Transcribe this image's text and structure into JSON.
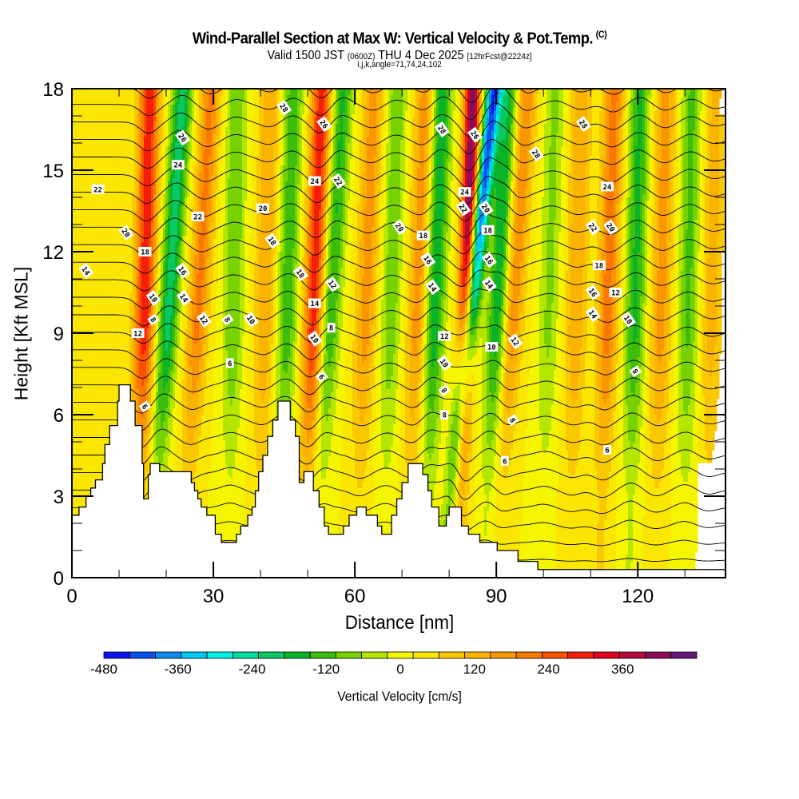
{
  "header": {
    "title": "Wind-Parallel Section at Max W: Vertical Velocity & Pot.Temp.",
    "copyright": "(C)",
    "valid_prefix": "Valid 1500 JST",
    "valid_utc": "(0600Z)",
    "valid_suffix": "THU 4 Dec 2025",
    "forecast": "[12hrFcst@2224z]",
    "grid_info": "i,j,k,angle=71,74,24,102"
  },
  "chart_data": {
    "type": "heatmap",
    "title": "Wind-Parallel Section at Max W: Vertical Velocity & Pot.Temp.",
    "xlabel": "Distance [nm]",
    "ylabel": "Height [Kft MSL]",
    "xlim": [
      0,
      138.6
    ],
    "ylim": [
      0,
      18
    ],
    "x_ticks": [
      0,
      30,
      60,
      90,
      120
    ],
    "x_tick_labels": [
      "0",
      "30",
      "60",
      "90",
      "120"
    ],
    "x_minor_step": 10,
    "y_ticks": [
      0,
      3,
      6,
      9,
      12,
      15,
      18
    ],
    "y_tick_labels": [
      "0",
      "3",
      "6",
      "9",
      "12",
      "15",
      "18"
    ],
    "y_minor_step": 1,
    "colorbar": {
      "label": "Vertical Velocity [cm/s]",
      "min": -480,
      "max": 440,
      "step": 40,
      "tick_values": [
        -480,
        -360,
        -240,
        -120,
        0,
        120,
        240,
        360
      ],
      "tick_labels": [
        "-480",
        "-360",
        "-240",
        "-120",
        "0",
        "120",
        "240",
        "360"
      ],
      "colors": [
        "#0a14f0",
        "#0a50f0",
        "#0a8cf0",
        "#00c8f5",
        "#00f0e6",
        "#00dca0",
        "#0ac864",
        "#0ab428",
        "#3cbe0a",
        "#78d200",
        "#b4e600",
        "#f5f500",
        "#fae600",
        "#fac800",
        "#fab400",
        "#fa9600",
        "#fa7800",
        "#fa5000",
        "#f51e0a",
        "#e1001e",
        "#b40a3c",
        "#8c0a5a",
        "#641478"
      ]
    },
    "w_bands": [
      {
        "center_nm_at_18kft": 16.5,
        "center_nm_at_3kft": 14.5,
        "peak_cms": 270
      },
      {
        "center_nm_at_18kft": 23.5,
        "center_nm_at_3kft": 18.0,
        "peak_cms": -220
      },
      {
        "center_nm_at_18kft": 29.5,
        "center_nm_at_3kft": 24.5,
        "peak_cms": 170
      },
      {
        "center_nm_at_18kft": 35.0,
        "center_nm_at_3kft": 33.5,
        "peak_cms": -120
      },
      {
        "center_nm_at_18kft": 42.0,
        "center_nm_at_3kft": 40.0,
        "peak_cms": 120
      },
      {
        "center_nm_at_18kft": 47.0,
        "center_nm_at_3kft": 44.5,
        "peak_cms": -150
      },
      {
        "center_nm_at_18kft": 53.0,
        "center_nm_at_3kft": 50.0,
        "peak_cms": 270
      },
      {
        "center_nm_at_18kft": 57.5,
        "center_nm_at_3kft": 52.5,
        "peak_cms": -170
      },
      {
        "center_nm_at_18kft": 64.0,
        "center_nm_at_3kft": 61.0,
        "peak_cms": 140
      },
      {
        "center_nm_at_18kft": 69.0,
        "center_nm_at_3kft": 66.5,
        "peak_cms": -110
      },
      {
        "center_nm_at_18kft": 75.0,
        "center_nm_at_3kft": 72.0,
        "peak_cms": 150
      },
      {
        "center_nm_at_18kft": 78.5,
        "center_nm_at_3kft": 75.5,
        "peak_cms": -200
      },
      {
        "center_nm_at_18kft": 85.0,
        "center_nm_at_3kft": 82.5,
        "peak_cms": 400
      },
      {
        "center_nm_at_18kft": 89.5,
        "center_nm_at_3kft": 80.5,
        "peak_cms": -420
      },
      {
        "center_nm_at_18kft": 92.5,
        "center_nm_at_3kft": 88.5,
        "peak_cms": -200
      },
      {
        "center_nm_at_18kft": 96.5,
        "center_nm_at_3kft": 91.0,
        "peak_cms": 160
      },
      {
        "center_nm_at_18kft": 102.5,
        "center_nm_at_3kft": 100.0,
        "peak_cms": -90
      },
      {
        "center_nm_at_18kft": 108.0,
        "center_nm_at_3kft": 106.0,
        "peak_cms": 120
      },
      {
        "center_nm_at_18kft": 115.0,
        "center_nm_at_3kft": 112.5,
        "peak_cms": 180
      },
      {
        "center_nm_at_18kft": 120.5,
        "center_nm_at_3kft": 118.5,
        "peak_cms": -170
      },
      {
        "center_nm_at_18kft": 126.0,
        "center_nm_at_3kft": 124.0,
        "peak_cms": 140
      },
      {
        "center_nm_at_18kft": 131.5,
        "center_nm_at_3kft": 130.0,
        "peak_cms": -130
      },
      {
        "center_nm_at_18kft": 136.5,
        "center_nm_at_3kft": 135.0,
        "peak_cms": 100
      }
    ],
    "theta_contours": {
      "levels_c": [
        4,
        6,
        8,
        10,
        12,
        14,
        16,
        18,
        20,
        22,
        24,
        26,
        28,
        30
      ],
      "interval_c": 2,
      "labels": [
        {
          "text": "22",
          "x_nm": 5.5,
          "y_kft": 14.3
        },
        {
          "text": "14",
          "x_nm": 3.0,
          "y_kft": 11.3
        },
        {
          "text": "20",
          "x_nm": 11.5,
          "y_kft": 12.7
        },
        {
          "text": "18",
          "x_nm": 15.5,
          "y_kft": 12.0
        },
        {
          "text": "10",
          "x_nm": 17.3,
          "y_kft": 10.3
        },
        {
          "text": "8",
          "x_nm": 17.3,
          "y_kft": 9.5
        },
        {
          "text": "12",
          "x_nm": 14.0,
          "y_kft": 9.0
        },
        {
          "text": "6",
          "x_nm": 15.5,
          "y_kft": 6.3
        },
        {
          "text": "26",
          "x_nm": 23.5,
          "y_kft": 16.2
        },
        {
          "text": "24",
          "x_nm": 22.5,
          "y_kft": 15.2
        },
        {
          "text": "16",
          "x_nm": 23.5,
          "y_kft": 11.3
        },
        {
          "text": "14",
          "x_nm": 23.8,
          "y_kft": 10.3
        },
        {
          "text": "22",
          "x_nm": 26.7,
          "y_kft": 13.3
        },
        {
          "text": "12",
          "x_nm": 28.0,
          "y_kft": 9.5
        },
        {
          "text": "8",
          "x_nm": 33.0,
          "y_kft": 9.5
        },
        {
          "text": "6",
          "x_nm": 33.5,
          "y_kft": 7.9
        },
        {
          "text": "10",
          "x_nm": 38.0,
          "y_kft": 9.5
        },
        {
          "text": "28",
          "x_nm": 45.0,
          "y_kft": 17.3
        },
        {
          "text": "20",
          "x_nm": 40.5,
          "y_kft": 13.6
        },
        {
          "text": "18",
          "x_nm": 42.5,
          "y_kft": 12.4
        },
        {
          "text": "26",
          "x_nm": 53.5,
          "y_kft": 16.7
        },
        {
          "text": "24",
          "x_nm": 51.5,
          "y_kft": 14.6
        },
        {
          "text": "22",
          "x_nm": 56.5,
          "y_kft": 14.6
        },
        {
          "text": "18",
          "x_nm": 48.5,
          "y_kft": 11.2
        },
        {
          "text": "14",
          "x_nm": 51.5,
          "y_kft": 10.1
        },
        {
          "text": "12",
          "x_nm": 55.3,
          "y_kft": 10.8
        },
        {
          "text": "10",
          "x_nm": 51.5,
          "y_kft": 8.8
        },
        {
          "text": "8",
          "x_nm": 55.0,
          "y_kft": 9.2
        },
        {
          "text": "6",
          "x_nm": 53.0,
          "y_kft": 7.4
        },
        {
          "text": "20",
          "x_nm": 69.5,
          "y_kft": 12.9
        },
        {
          "text": "18",
          "x_nm": 74.5,
          "y_kft": 12.6
        },
        {
          "text": "16",
          "x_nm": 75.5,
          "y_kft": 11.7
        },
        {
          "text": "14",
          "x_nm": 76.5,
          "y_kft": 10.7
        },
        {
          "text": "12",
          "x_nm": 79.0,
          "y_kft": 8.9
        },
        {
          "text": "10",
          "x_nm": 79.0,
          "y_kft": 7.9
        },
        {
          "text": "8",
          "x_nm": 79.0,
          "y_kft": 6.9
        },
        {
          "text": "8",
          "x_nm": 79.0,
          "y_kft": 6.0
        },
        {
          "text": "28",
          "x_nm": 78.5,
          "y_kft": 16.5
        },
        {
          "text": "26",
          "x_nm": 85.5,
          "y_kft": 16.3
        },
        {
          "text": "24",
          "x_nm": 83.3,
          "y_kft": 14.2
        },
        {
          "text": "22",
          "x_nm": 83.0,
          "y_kft": 13.6
        },
        {
          "text": "20",
          "x_nm": 87.8,
          "y_kft": 13.6
        },
        {
          "text": "18",
          "x_nm": 88.2,
          "y_kft": 12.8
        },
        {
          "text": "16",
          "x_nm": 88.5,
          "y_kft": 11.7
        },
        {
          "text": "14",
          "x_nm": 88.5,
          "y_kft": 10.8
        },
        {
          "text": "10",
          "x_nm": 89.0,
          "y_kft": 8.5
        },
        {
          "text": "12",
          "x_nm": 94.0,
          "y_kft": 8.7
        },
        {
          "text": "8",
          "x_nm": 93.5,
          "y_kft": 5.8
        },
        {
          "text": "6",
          "x_nm": 91.8,
          "y_kft": 4.3
        },
        {
          "text": "28",
          "x_nm": 98.5,
          "y_kft": 15.6
        },
        {
          "text": "28",
          "x_nm": 108.5,
          "y_kft": 16.7
        },
        {
          "text": "24",
          "x_nm": 113.5,
          "y_kft": 14.4
        },
        {
          "text": "22",
          "x_nm": 110.5,
          "y_kft": 12.9
        },
        {
          "text": "20",
          "x_nm": 114.3,
          "y_kft": 12.9
        },
        {
          "text": "18",
          "x_nm": 111.8,
          "y_kft": 11.5
        },
        {
          "text": "16",
          "x_nm": 110.5,
          "y_kft": 10.5
        },
        {
          "text": "14",
          "x_nm": 110.5,
          "y_kft": 9.7
        },
        {
          "text": "12",
          "x_nm": 115.3,
          "y_kft": 10.5
        },
        {
          "text": "10",
          "x_nm": 118.0,
          "y_kft": 9.5
        },
        {
          "text": "8",
          "x_nm": 119.5,
          "y_kft": 7.6
        },
        {
          "text": "6",
          "x_nm": 113.5,
          "y_kft": 4.7
        }
      ]
    },
    "terrain_profile": [
      [
        0,
        2.3
      ],
      [
        1.5,
        2.3
      ],
      [
        1.5,
        2.6
      ],
      [
        3,
        2.6
      ],
      [
        3,
        3.0
      ],
      [
        4,
        3.0
      ],
      [
        4,
        3.3
      ],
      [
        5,
        3.3
      ],
      [
        5,
        3.6
      ],
      [
        6.5,
        3.6
      ],
      [
        6.5,
        4.2
      ],
      [
        7,
        4.2
      ],
      [
        7,
        4.9
      ],
      [
        8,
        4.9
      ],
      [
        8,
        5.6
      ],
      [
        9.7,
        5.6
      ],
      [
        9.7,
        6.5
      ],
      [
        10,
        6.5
      ],
      [
        10,
        7.1
      ],
      [
        12.4,
        7.1
      ],
      [
        12.4,
        6.5
      ],
      [
        13.4,
        6.5
      ],
      [
        13.4,
        5.6
      ],
      [
        14.9,
        5.6
      ],
      [
        14.9,
        4.2
      ],
      [
        15.2,
        4.2
      ],
      [
        15.2,
        2.9
      ],
      [
        16.2,
        2.9
      ],
      [
        16.2,
        3.8
      ],
      [
        16.6,
        3.8
      ],
      [
        16.6,
        4.2
      ],
      [
        18.6,
        4.2
      ],
      [
        18.6,
        3.9
      ],
      [
        25.3,
        3.9
      ],
      [
        25.3,
        3.5
      ],
      [
        26.0,
        3.5
      ],
      [
        26.0,
        3.2
      ],
      [
        26.7,
        3.2
      ],
      [
        26.7,
        2.9
      ],
      [
        27.4,
        2.9
      ],
      [
        27.4,
        2.6
      ],
      [
        28.6,
        2.6
      ],
      [
        28.6,
        2.3
      ],
      [
        30.4,
        2.3
      ],
      [
        30.4,
        1.6
      ],
      [
        31.7,
        1.6
      ],
      [
        31.7,
        1.3
      ],
      [
        34.9,
        1.3
      ],
      [
        34.9,
        1.6
      ],
      [
        35.8,
        1.6
      ],
      [
        35.8,
        1.9
      ],
      [
        37.3,
        1.9
      ],
      [
        37.3,
        2.3
      ],
      [
        38.2,
        2.3
      ],
      [
        38.2,
        2.6
      ],
      [
        38.9,
        2.6
      ],
      [
        38.9,
        3.2
      ],
      [
        39.6,
        3.2
      ],
      [
        39.6,
        3.9
      ],
      [
        40.5,
        3.9
      ],
      [
        40.5,
        4.5
      ],
      [
        41.5,
        4.5
      ],
      [
        41.5,
        5.2
      ],
      [
        42.6,
        5.2
      ],
      [
        42.6,
        5.8
      ],
      [
        43.7,
        5.8
      ],
      [
        43.7,
        6.5
      ],
      [
        46.3,
        6.5
      ],
      [
        46.3,
        5.8
      ],
      [
        47.4,
        5.8
      ],
      [
        47.4,
        5.2
      ],
      [
        48.2,
        5.2
      ],
      [
        48.2,
        3.5
      ],
      [
        49.2,
        3.5
      ],
      [
        49.2,
        3.9
      ],
      [
        51.2,
        3.9
      ],
      [
        51.2,
        3.2
      ],
      [
        52.4,
        3.2
      ],
      [
        52.4,
        2.6
      ],
      [
        53.5,
        2.6
      ],
      [
        53.5,
        1.9
      ],
      [
        54.4,
        1.9
      ],
      [
        54.4,
        1.6
      ],
      [
        57.6,
        1.6
      ],
      [
        57.6,
        1.9
      ],
      [
        58.8,
        1.9
      ],
      [
        58.8,
        2.3
      ],
      [
        60.4,
        2.3
      ],
      [
        60.4,
        2.6
      ],
      [
        62.4,
        2.6
      ],
      [
        62.4,
        2.3
      ],
      [
        64.8,
        2.3
      ],
      [
        64.8,
        1.9
      ],
      [
        65.7,
        1.9
      ],
      [
        65.7,
        1.6
      ],
      [
        67.8,
        1.6
      ],
      [
        67.8,
        2.3
      ],
      [
        68.9,
        2.3
      ],
      [
        68.9,
        2.9
      ],
      [
        70.0,
        2.9
      ],
      [
        70.0,
        3.5
      ],
      [
        71.3,
        3.5
      ],
      [
        71.3,
        4.2
      ],
      [
        74.4,
        4.2
      ],
      [
        74.4,
        3.8
      ],
      [
        75.5,
        3.8
      ],
      [
        75.5,
        3.2
      ],
      [
        76.3,
        3.2
      ],
      [
        76.3,
        2.6
      ],
      [
        77.8,
        2.6
      ],
      [
        77.8,
        1.9
      ],
      [
        79.4,
        1.9
      ],
      [
        79.4,
        2.3
      ],
      [
        80.0,
        2.3
      ],
      [
        80.0,
        2.6
      ],
      [
        82.6,
        2.6
      ],
      [
        82.6,
        1.9
      ],
      [
        84.1,
        1.9
      ],
      [
        84.1,
        1.6
      ],
      [
        86.5,
        1.6
      ],
      [
        86.5,
        1.3
      ],
      [
        90.2,
        1.3
      ],
      [
        90.2,
        1.0
      ],
      [
        94.6,
        1.0
      ],
      [
        94.6,
        0.6
      ],
      [
        98.8,
        0.6
      ],
      [
        98.8,
        0.3
      ],
      [
        103.5,
        0.3
      ],
      [
        103.5,
        0.3
      ],
      [
        138.6,
        0.3
      ]
    ]
  }
}
